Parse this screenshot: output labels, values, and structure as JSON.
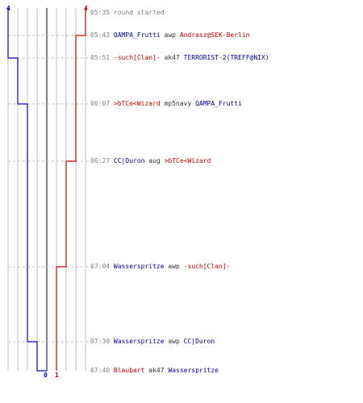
{
  "colors": {
    "team_blue": "#0000cc",
    "team_red": "#cc0000",
    "grid": "#c0c0c0",
    "center_line": "#808080",
    "time_text": "#808080"
  },
  "score_labels": {
    "blue_start": "4",
    "red_start": "4",
    "blue_end": "0",
    "red_end": "1"
  },
  "events": [
    {
      "time": "05:35",
      "type": "message",
      "text": "round started"
    },
    {
      "time": "05:43",
      "type": "kill",
      "killer": "QAMPA_Frutti",
      "killer_team": "blue",
      "weapon": "awp",
      "victim": "Andrasz@SEK-Berlin",
      "victim_team": "red"
    },
    {
      "time": "05:51",
      "type": "kill",
      "killer": "-such[Clan]-",
      "killer_team": "red",
      "weapon": "ak47",
      "victim": "TERRORIST-2(TREFF@NIX)",
      "victim_team": "blue"
    },
    {
      "time": "06:07",
      "type": "kill",
      "killer": ">bTCe<Wizard",
      "killer_team": "red",
      "weapon": "mp5navy",
      "victim": "QAMPA_Frutti",
      "victim_team": "blue"
    },
    {
      "time": "06:27",
      "type": "kill",
      "killer": "CC|Duron",
      "killer_team": "blue",
      "weapon": "aug",
      "victim": ">bTCe<Wizard",
      "victim_team": "red"
    },
    {
      "time": "07:04",
      "type": "kill",
      "killer": "Wasserspritze",
      "killer_team": "blue",
      "weapon": "awp",
      "victim": "-such[Clan]-",
      "victim_team": "red"
    },
    {
      "time": "07:30",
      "type": "kill",
      "killer": "Wasserspritze",
      "killer_team": "blue",
      "weapon": "awp",
      "victim": "CC|Duron",
      "victim_team": "blue"
    },
    {
      "time": "07:40",
      "type": "kill",
      "killer": "Blaubart",
      "killer_team": "red",
      "weapon": "ak47",
      "victim": "Wasserspritze",
      "victim_team": "blue"
    }
  ],
  "chart_data": {
    "type": "line",
    "title": "",
    "xlabel": "",
    "ylabel": "",
    "x": [
      "05:35",
      "05:43",
      "05:51",
      "06:07",
      "06:27",
      "07:04",
      "07:30",
      "07:40"
    ],
    "xlim": [
      0,
      8
    ],
    "grid": true,
    "series": [
      {
        "values": [
          4,
          4,
          3,
          2,
          2,
          2,
          1,
          0
        ],
        "color": "#0000cc"
      },
      {
        "values": [
          4,
          3,
          3,
          3,
          2,
          1,
          1,
          1
        ],
        "color": "#cc0000"
      }
    ]
  }
}
